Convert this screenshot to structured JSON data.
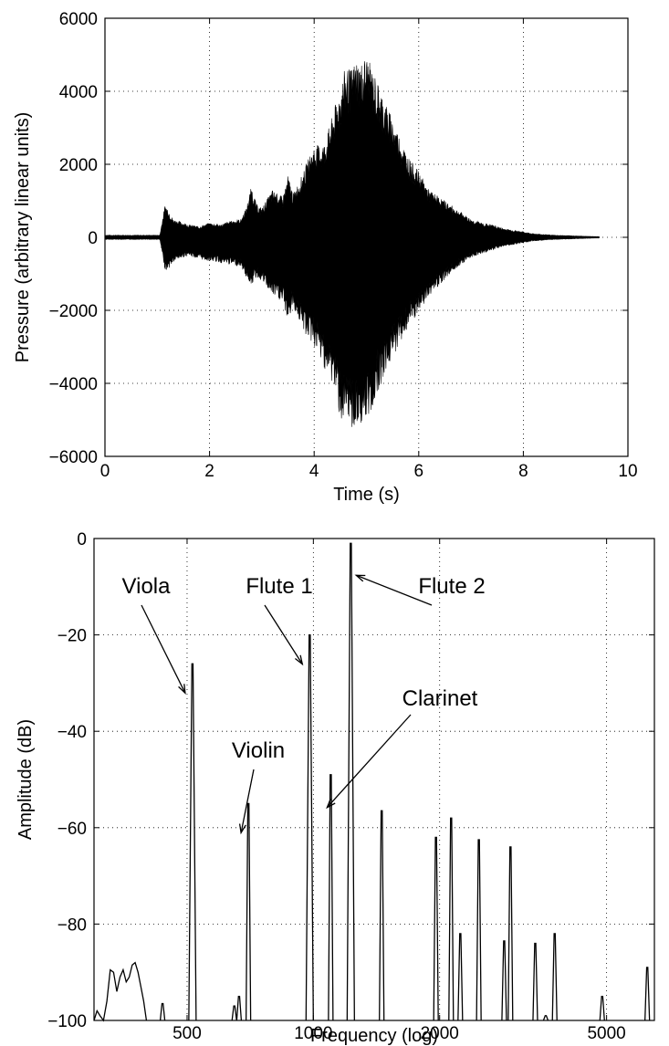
{
  "chart_data": [
    {
      "type": "line",
      "xlabel": "Time (s)",
      "ylabel": "Pressure (arbitrary linear units)",
      "xlim": [
        0,
        10
      ],
      "ylim": [
        -6000,
        6000
      ],
      "xticks": [
        0,
        2,
        4,
        6,
        8,
        10
      ],
      "yticks": [
        -6000,
        -4000,
        -2000,
        0,
        2000,
        4000,
        6000
      ],
      "grid": true,
      "series": [
        {
          "kind": "waveform-envelope",
          "t": [
            0.0,
            1.05,
            1.1,
            1.15,
            1.2,
            1.3,
            1.4,
            1.6,
            1.8,
            2.0,
            2.2,
            2.4,
            2.6,
            2.7,
            2.8,
            2.9,
            3.0,
            3.2,
            3.4,
            3.5,
            3.6,
            3.8,
            3.9,
            4.0,
            4.2,
            4.4,
            4.5,
            4.6,
            4.7,
            4.8,
            4.9,
            5.0,
            5.2,
            5.4,
            5.6,
            5.8,
            6.0,
            6.2,
            6.4,
            6.6,
            6.8,
            7.0,
            7.2,
            7.4,
            7.6,
            7.8,
            8.0,
            8.2,
            8.4,
            8.6,
            8.8,
            9.0,
            9.2,
            9.45
          ],
          "upper": [
            60,
            60,
            500,
            900,
            800,
            500,
            450,
            350,
            300,
            400,
            350,
            450,
            500,
            800,
            1400,
            900,
            800,
            1300,
            1100,
            1700,
            1200,
            1800,
            2200,
            2500,
            2600,
            3600,
            4100,
            4700,
            4600,
            4900,
            4800,
            5000,
            4300,
            3600,
            2900,
            2200,
            1800,
            1300,
            1100,
            900,
            700,
            500,
            400,
            350,
            250,
            200,
            150,
            100,
            80,
            60,
            50,
            40,
            30,
            20
          ],
          "lower": [
            -60,
            -60,
            -500,
            -900,
            -900,
            -700,
            -600,
            -500,
            -600,
            -650,
            -700,
            -750,
            -800,
            -1100,
            -1300,
            -1100,
            -1200,
            -1600,
            -1800,
            -2300,
            -1900,
            -2600,
            -2800,
            -3000,
            -3600,
            -4200,
            -5000,
            -5300,
            -5200,
            -5400,
            -5100,
            -5200,
            -4300,
            -3600,
            -3000,
            -2500,
            -2100,
            -1600,
            -1300,
            -1000,
            -750,
            -550,
            -450,
            -350,
            -250,
            -200,
            -150,
            -100,
            -80,
            -60,
            -50,
            -40,
            -30,
            -20
          ]
        }
      ]
    },
    {
      "type": "line",
      "xlabel": "Frequency (log)",
      "ylabel": "Amplitude (dB)",
      "xscale": "log",
      "xlim": [
        300,
        6500
      ],
      "ylim": [
        -100,
        0
      ],
      "xticks": [
        500,
        1000,
        2000,
        5000
      ],
      "yticks": [
        -100,
        -80,
        -60,
        -40,
        -20,
        0
      ],
      "grid": true,
      "series": [
        {
          "kind": "spectrum",
          "low_freq": [
            [
              300,
              -100
            ],
            [
              305,
              -98
            ],
            [
              310,
              -99
            ],
            [
              316,
              -100
            ],
            [
              322,
              -96
            ],
            [
              328,
              -89.5
            ],
            [
              334,
              -90
            ],
            [
              340,
              -94
            ],
            [
              346,
              -91
            ],
            [
              352,
              -89.5
            ],
            [
              358,
              -92
            ],
            [
              364,
              -91
            ],
            [
              370,
              -88.5
            ],
            [
              376,
              -88
            ],
            [
              382,
              -90
            ],
            [
              388,
              -93
            ],
            [
              394,
              -96
            ],
            [
              400,
              -100
            ]
          ],
          "peaks": [
            {
              "f": 437,
              "db": -96.5
            },
            {
              "f": 515,
              "db": -26
            },
            {
              "f": 648,
              "db": -97
            },
            {
              "f": 665,
              "db": -95
            },
            {
              "f": 700,
              "db": -55
            },
            {
              "f": 980,
              "db": -20
            },
            {
              "f": 1100,
              "db": -49
            },
            {
              "f": 1228,
              "db": -1
            },
            {
              "f": 1455,
              "db": -56.5
            },
            {
              "f": 1960,
              "db": -62
            },
            {
              "f": 2130,
              "db": -58
            },
            {
              "f": 2240,
              "db": -82
            },
            {
              "f": 2480,
              "db": -62.5
            },
            {
              "f": 2850,
              "db": -83.5
            },
            {
              "f": 2950,
              "db": -64
            },
            {
              "f": 3380,
              "db": -84
            },
            {
              "f": 3580,
              "db": -99
            },
            {
              "f": 3760,
              "db": -82
            },
            {
              "f": 4880,
              "db": -95
            },
            {
              "f": 6250,
              "db": -89
            }
          ]
        }
      ],
      "annotations": [
        {
          "text": "Viola",
          "target_f": 515,
          "target_db": -26
        },
        {
          "text": "Violin",
          "target_f": 700,
          "target_db": -55
        },
        {
          "text": "Flute 1",
          "target_f": 980,
          "target_db": -20
        },
        {
          "text": "Clarinet",
          "target_f": 1100,
          "target_db": -49
        },
        {
          "text": "Flute 2",
          "target_f": 1228,
          "target_db": -1
        }
      ]
    }
  ]
}
